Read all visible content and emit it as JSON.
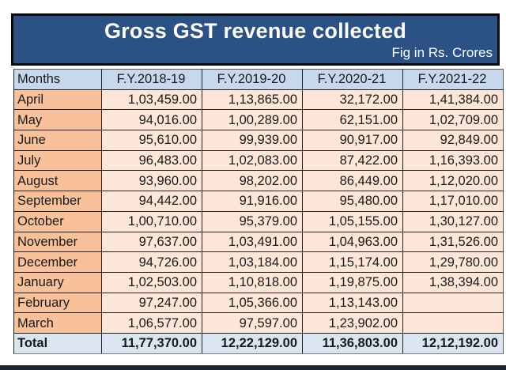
{
  "banner": {
    "title": "Gross GST revenue collected",
    "subtitle": "Fig in Rs. Crores",
    "background_color": "#2c5285"
  },
  "table": {
    "headers": [
      "Months",
      "F.Y.2018-19",
      "F.Y.2019-20",
      "F.Y.2020-21",
      "F.Y.2021-22"
    ],
    "rows": [
      {
        "month": "April",
        "values": [
          "1,03,459.00",
          "1,13,865.00",
          "32,172.00",
          "1,41,384.00"
        ]
      },
      {
        "month": "May",
        "values": [
          "94,016.00",
          "1,00,289.00",
          "62,151.00",
          "1,02,709.00"
        ]
      },
      {
        "month": "June",
        "values": [
          "95,610.00",
          "99,939.00",
          "90,917.00",
          "92,849.00"
        ]
      },
      {
        "month": "July",
        "values": [
          "96,483.00",
          "1,02,083.00",
          "87,422.00",
          "1,16,393.00"
        ]
      },
      {
        "month": "August",
        "values": [
          "93,960.00",
          "98,202.00",
          "86,449.00",
          "1,12,020.00"
        ]
      },
      {
        "month": "September",
        "values": [
          "94,442.00",
          "91,916.00",
          "95,480.00",
          "1,17,010.00"
        ]
      },
      {
        "month": "October",
        "values": [
          "1,00,710.00",
          "95,379.00",
          "1,05,155.00",
          "1,30,127.00"
        ]
      },
      {
        "month": "November",
        "values": [
          "97,637.00",
          "1,03,491.00",
          "1,04,963.00",
          "1,31,526.00"
        ]
      },
      {
        "month": "December",
        "values": [
          "94,726.00",
          "1,03,184.00",
          "1,15,174.00",
          "1,29,780.00"
        ]
      },
      {
        "month": "January",
        "values": [
          "1,02,503.00",
          "1,10,818.00",
          "1,19,875.00",
          "1,38,394.00"
        ]
      },
      {
        "month": "February",
        "values": [
          "97,247.00",
          "1,05,366.00",
          "1,13,143.00",
          ""
        ]
      },
      {
        "month": "March",
        "values": [
          "1,06,577.00",
          "97,597.00",
          "1,23,902.00",
          ""
        ]
      }
    ],
    "total": {
      "label": "Total",
      "values": [
        "11,77,370.00",
        "12,22,129.00",
        "11,36,803.00",
        "12,12,192.00"
      ]
    },
    "colors": {
      "header_bg": "#c7d8ee",
      "month_bg": "#f8c199",
      "value_bg": "#fde6d8",
      "total_bg": "#dbe5f2"
    }
  }
}
